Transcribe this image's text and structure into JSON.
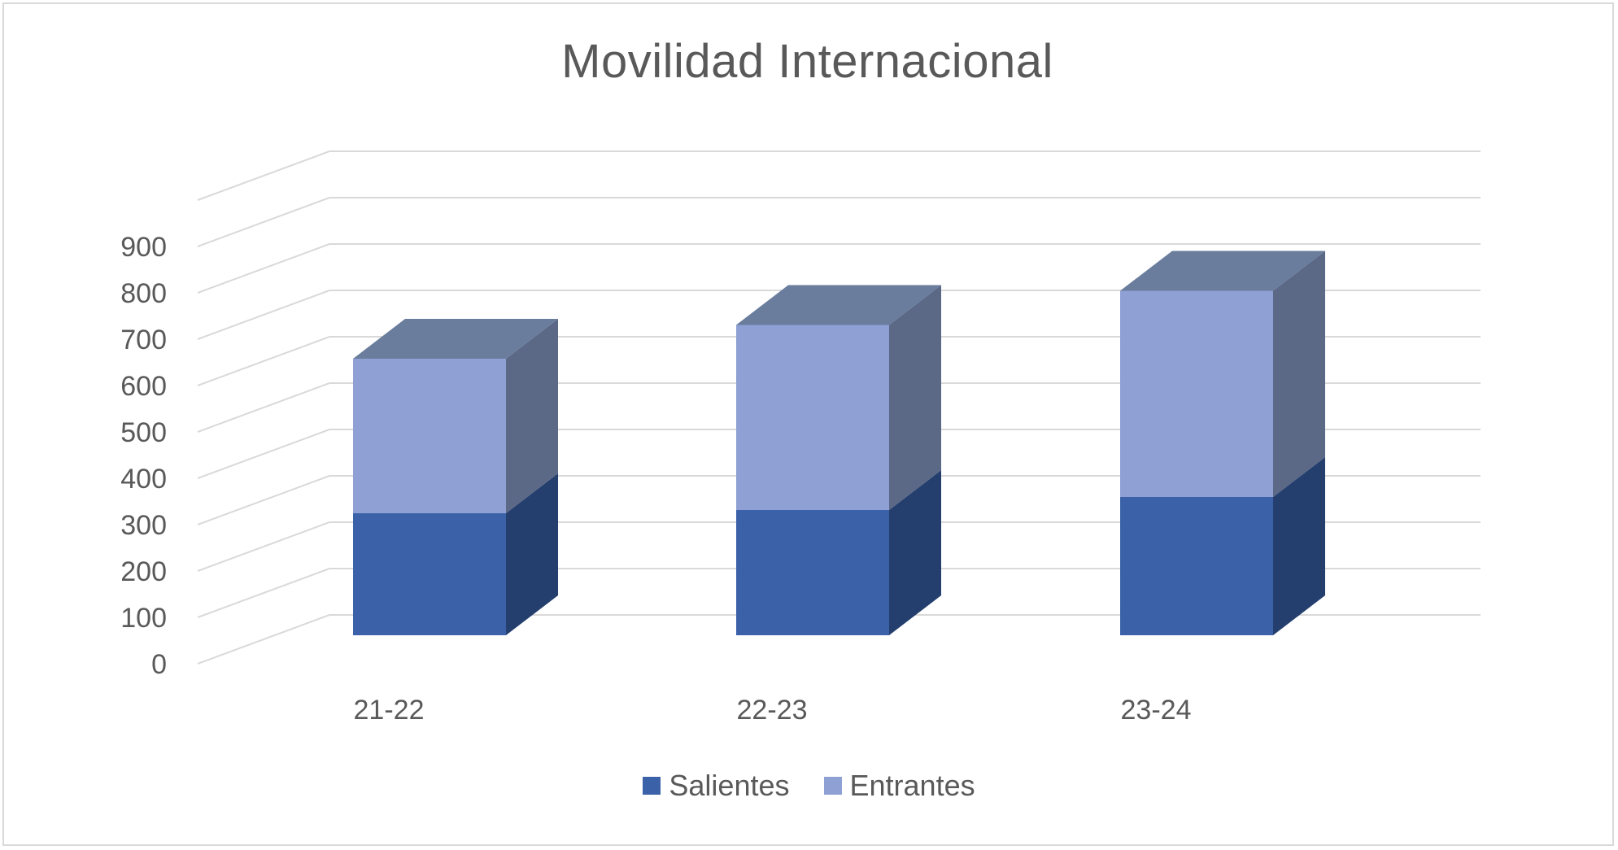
{
  "chart_data": {
    "type": "bar",
    "stacked": true,
    "three_d": true,
    "title": "Movilidad Internacional",
    "categories": [
      "21-22",
      "22-23",
      "23-24"
    ],
    "series": [
      {
        "name": "Salientes",
        "values": [
          300,
          308,
          340
        ],
        "color": "#3b62a8"
      },
      {
        "name": "Entrantes",
        "values": [
          380,
          455,
          507
        ],
        "color": "#8ea0d4"
      }
    ],
    "ylim": [
      0,
      900
    ],
    "yticks": [
      "0",
      "100",
      "200",
      "300",
      "400",
      "500",
      "600",
      "700",
      "800",
      "900"
    ],
    "grid": true,
    "legend_position": "bottom",
    "colors": {
      "salientes_front": "#3b62a8",
      "salientes_side": "#243f6e",
      "entrantes_front": "#8ea0d4",
      "entrantes_side": "#5b6886",
      "top": "#6a7d9d",
      "grid": "#d9d9d9",
      "text": "#595959"
    }
  }
}
